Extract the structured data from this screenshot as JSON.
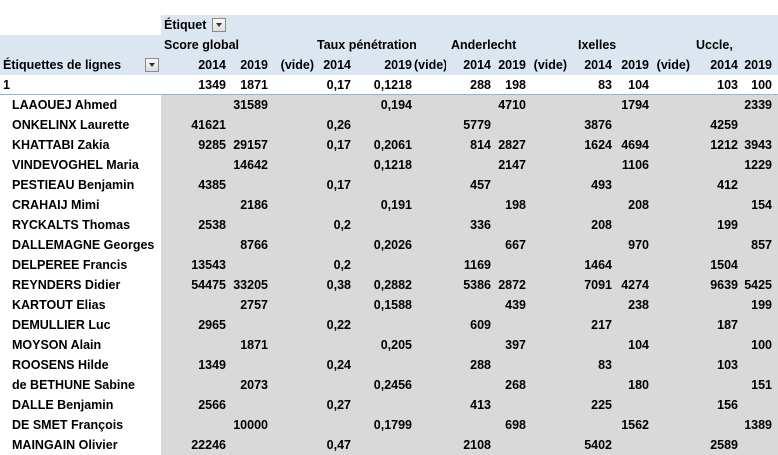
{
  "pivot": {
    "column_labels_caption": "Étiquet",
    "row_labels_caption": "Étiquettes de lignes",
    "groups": [
      "Score global",
      "Taux pénétration",
      "Anderlecht",
      "Ixelles",
      "Uccle,"
    ],
    "sub_headers": [
      [
        "2014",
        "2019",
        "(vide)"
      ],
      [
        "2014",
        "2019",
        "(vide)"
      ],
      [
        "2014",
        "2019",
        "(vide)"
      ],
      [
        "2014",
        "2019",
        "(vide)"
      ],
      [
        "2014",
        "2019"
      ]
    ],
    "rows": [
      {
        "label": "1",
        "values": [
          "1349",
          "1871",
          "",
          "0,17",
          "0,1218",
          "",
          "288",
          "198",
          "",
          "83",
          "104",
          "",
          "103",
          "100"
        ]
      },
      {
        "label": "LAAOUEJ Ahmed",
        "values": [
          "",
          "31589",
          "",
          "",
          "0,194",
          "",
          "",
          "4710",
          "",
          "",
          "1794",
          "",
          "",
          "2339"
        ]
      },
      {
        "label": "ONKELINX Laurette",
        "values": [
          "41621",
          "",
          "",
          "0,26",
          "",
          "",
          "5779",
          "",
          "",
          "3876",
          "",
          "",
          "4259",
          ""
        ]
      },
      {
        "label": "KHATTABI Zakia",
        "values": [
          "9285",
          "29157",
          "",
          "0,17",
          "0,2061",
          "",
          "814",
          "2827",
          "",
          "1624",
          "4694",
          "",
          "1212",
          "3943"
        ]
      },
      {
        "label": "VINDEVOGHEL Maria",
        "values": [
          "",
          "14642",
          "",
          "",
          "0,1218",
          "",
          "",
          "2147",
          "",
          "",
          "1106",
          "",
          "",
          "1229"
        ]
      },
      {
        "label": "PESTIEAU Benjamin",
        "values": [
          "4385",
          "",
          "",
          "0,17",
          "",
          "",
          "457",
          "",
          "",
          "493",
          "",
          "",
          "412",
          ""
        ]
      },
      {
        "label": "CRAHAIJ Mimi",
        "values": [
          "",
          "2186",
          "",
          "",
          "0,191",
          "",
          "",
          "198",
          "",
          "",
          "208",
          "",
          "",
          "154"
        ]
      },
      {
        "label": "RYCKALTS Thomas",
        "values": [
          "2538",
          "",
          "",
          "0,2",
          "",
          "",
          "336",
          "",
          "",
          "208",
          "",
          "",
          "199",
          ""
        ]
      },
      {
        "label": "DALLEMAGNE Georges",
        "values": [
          "",
          "8766",
          "",
          "",
          "0,2026",
          "",
          "",
          "667",
          "",
          "",
          "970",
          "",
          "",
          "857"
        ]
      },
      {
        "label": "DELPEREE Francis",
        "values": [
          "13543",
          "",
          "",
          "0,2",
          "",
          "",
          "1169",
          "",
          "",
          "1464",
          "",
          "",
          "1504",
          ""
        ]
      },
      {
        "label": "REYNDERS Didier",
        "values": [
          "54475",
          "33205",
          "",
          "0,38",
          "0,2882",
          "",
          "5386",
          "2872",
          "",
          "7091",
          "4274",
          "",
          "9639",
          "5425"
        ]
      },
      {
        "label": "KARTOUT Elias",
        "values": [
          "",
          "2757",
          "",
          "",
          "0,1588",
          "",
          "",
          "439",
          "",
          "",
          "238",
          "",
          "",
          "199"
        ]
      },
      {
        "label": "DEMULLIER Luc",
        "values": [
          "2965",
          "",
          "",
          "0,22",
          "",
          "",
          "609",
          "",
          "",
          "217",
          "",
          "",
          "187",
          ""
        ]
      },
      {
        "label": "MOYSON Alain",
        "values": [
          "",
          "1871",
          "",
          "",
          "0,205",
          "",
          "",
          "397",
          "",
          "",
          "104",
          "",
          "",
          "100"
        ]
      },
      {
        "label": "ROOSENS Hilde",
        "values": [
          "1349",
          "",
          "",
          "0,24",
          "",
          "",
          "288",
          "",
          "",
          "83",
          "",
          "",
          "103",
          ""
        ]
      },
      {
        "label": "de BETHUNE Sabine",
        "values": [
          "",
          "2073",
          "",
          "",
          "0,2456",
          "",
          "",
          "268",
          "",
          "",
          "180",
          "",
          "",
          "151"
        ]
      },
      {
        "label": "DALLE Benjamin",
        "values": [
          "2566",
          "",
          "",
          "0,27",
          "",
          "",
          "413",
          "",
          "",
          "225",
          "",
          "",
          "156",
          ""
        ]
      },
      {
        "label": "DE SMET François",
        "values": [
          "",
          "10000",
          "",
          "",
          "0,1799",
          "",
          "",
          "698",
          "",
          "",
          "1562",
          "",
          "",
          "1389"
        ]
      },
      {
        "label": "MAINGAIN Olivier",
        "values": [
          "22246",
          "",
          "",
          "0,47",
          "",
          "",
          "2108",
          "",
          "",
          "5402",
          "",
          "",
          "2589",
          ""
        ]
      }
    ]
  }
}
